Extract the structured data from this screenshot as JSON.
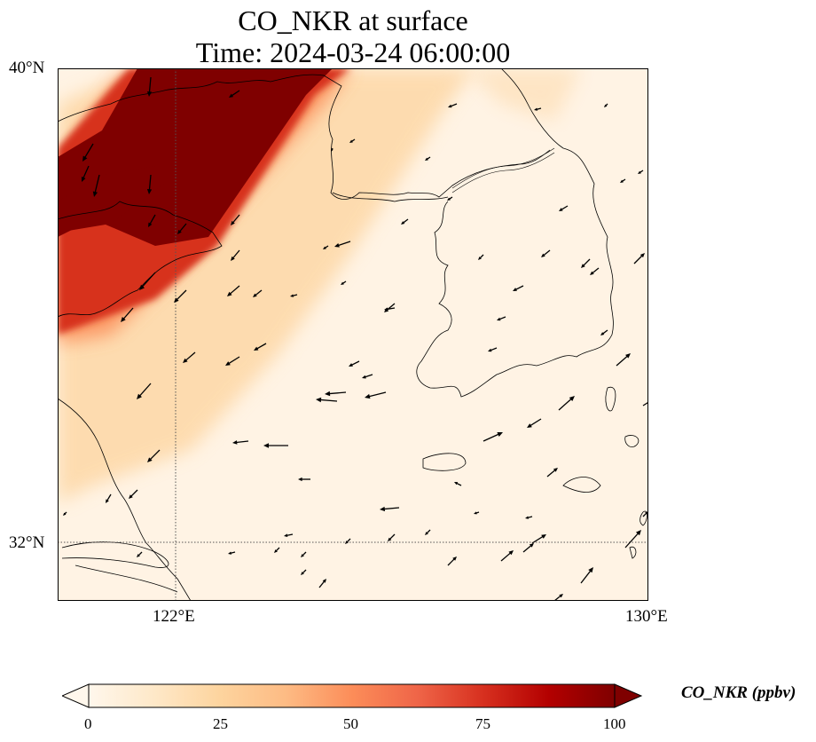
{
  "title": {
    "line1": "CO_NKR at surface",
    "line2": "Time: 2024-03-24 06:00:00"
  },
  "axes": {
    "lat_labels": [
      "40°N",
      "32°N"
    ],
    "lon_labels": [
      "122°E",
      "130°E"
    ]
  },
  "colorbar": {
    "label": "CO_NKR (ppbv)",
    "ticks": [
      "0",
      "25",
      "50",
      "75",
      "100"
    ],
    "min": 0,
    "max": 100,
    "extend": "both",
    "colormap": "OrRd",
    "colors": [
      "#fff7ec",
      "#fee8c8",
      "#fdd49e",
      "#fdbb84",
      "#fc8d59",
      "#ef6548",
      "#d7301f",
      "#b30000",
      "#7f0000"
    ]
  },
  "map": {
    "lon_range": [
      120,
      130
    ],
    "lat_range": [
      31,
      40
    ],
    "gridlines": {
      "lon": 122,
      "lat": 32
    },
    "plume_color": "#7f0000",
    "background_color": "#fff3e4",
    "coastline_color": "#000000",
    "wind_arrow_color": "#000000"
  }
}
